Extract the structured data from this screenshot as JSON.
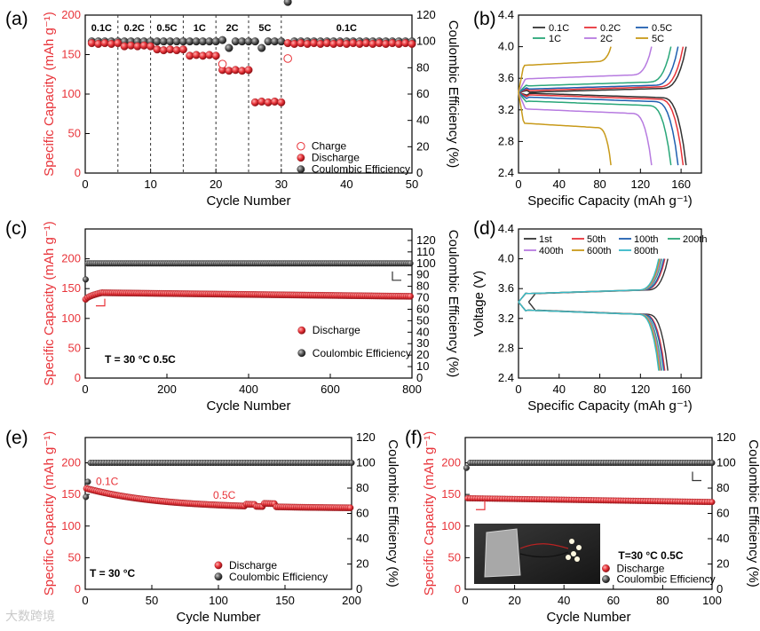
{
  "colors": {
    "red": "#e8343a",
    "black": "#333333",
    "grey": "#555555",
    "axis": "#000000"
  },
  "watermark": "大数跨境",
  "chart_data": [
    {
      "id": "a",
      "type": "scatter",
      "panel_label": "(a)",
      "xlabel": "Cycle Number",
      "ylabel": "Specific Capacity (mAh g⁻¹)",
      "y2label": "Coulombic Efficiency (%)",
      "xlim": [
        0,
        50
      ],
      "ylim": [
        0,
        200
      ],
      "y2lim": [
        0,
        120
      ],
      "xticks": [
        0,
        10,
        20,
        30,
        40,
        50
      ],
      "yticks": [
        0,
        50,
        100,
        150,
        200
      ],
      "y2ticks": [
        0,
        20,
        40,
        60,
        80,
        100,
        120
      ],
      "segments": [
        {
          "label": "0.1C",
          "x_range": [
            0,
            5
          ]
        },
        {
          "label": "0.2C",
          "x_range": [
            5,
            10
          ]
        },
        {
          "label": "0.5C",
          "x_range": [
            10,
            15
          ]
        },
        {
          "label": "1C",
          "x_range": [
            15,
            20
          ]
        },
        {
          "label": "2C",
          "x_range": [
            20,
            25
          ]
        },
        {
          "label": "5C",
          "x_range": [
            25,
            30
          ]
        },
        {
          "label": "0.1C",
          "x_range": [
            30,
            50
          ]
        }
      ],
      "legend": [
        "Charge",
        "Discharge",
        "Coulombic Efficiency"
      ],
      "series": [
        {
          "name": "Charge",
          "marker": "open-circle",
          "x": [
            21,
            31
          ],
          "values": [
            138,
            145
          ]
        },
        {
          "name": "Discharge",
          "marker": "red-ball",
          "segment_values": [
            {
              "x": [
                1,
                5
              ],
              "y": 164
            },
            {
              "x": [
                6,
                10
              ],
              "y": 161
            },
            {
              "x": [
                11,
                15
              ],
              "y": 156
            },
            {
              "x": [
                16,
                20
              ],
              "y": 149
            },
            {
              "x": [
                21,
                25
              ],
              "y": 130
            },
            {
              "x": [
                26,
                30
              ],
              "y": 90
            },
            {
              "x": [
                31,
                50
              ],
              "y": 164
            }
          ]
        },
        {
          "name": "Coulombic Efficiency",
          "marker": "grey-ball",
          "axis": "y2",
          "values": [
            100,
            100,
            100,
            100,
            100,
            100,
            100,
            100,
            100,
            100,
            100,
            100,
            100,
            100,
            100,
            100,
            100,
            100,
            100,
            100,
            101,
            95,
            100,
            100,
            100,
            100,
            95,
            100,
            100,
            100,
            130,
            100,
            100,
            100,
            100,
            100,
            100,
            100,
            100,
            100,
            100,
            100,
            100,
            100,
            100,
            100,
            100,
            100,
            100,
            100
          ]
        }
      ]
    },
    {
      "id": "b",
      "type": "line",
      "panel_label": "(b)",
      "xlabel": "Specific Capacity (mAh g⁻¹)",
      "ylabel": "",
      "xlim": [
        0,
        180
      ],
      "ylim": [
        2.4,
        4.4
      ],
      "xticks": [
        0,
        40,
        80,
        120,
        160
      ],
      "yticks": [
        2.4,
        2.8,
        3.2,
        3.6,
        4.0,
        4.4
      ],
      "legend": [
        "0.1C",
        "0.2C",
        "0.5C",
        "1C",
        "2C",
        "5C"
      ],
      "series": [
        {
          "name": "0.1C",
          "color": "#333333",
          "cap": 165,
          "plat_c": 3.45,
          "plat_d": 3.38
        },
        {
          "name": "0.2C",
          "color": "#e8343a",
          "cap": 162,
          "plat_c": 3.47,
          "plat_d": 3.36
        },
        {
          "name": "0.5C",
          "color": "#1f5fb0",
          "cap": 157,
          "plat_c": 3.49,
          "plat_d": 3.33
        },
        {
          "name": "1C",
          "color": "#2aa779",
          "cap": 150,
          "plat_c": 3.53,
          "plat_d": 3.28
        },
        {
          "name": "2C",
          "color": "#b77be0",
          "cap": 131,
          "plat_c": 3.62,
          "plat_d": 3.18
        },
        {
          "name": "5C",
          "color": "#c89a1a",
          "cap": 91,
          "plat_c": 3.79,
          "plat_d": 3.0
        }
      ]
    },
    {
      "id": "c",
      "type": "scatter",
      "panel_label": "(c)",
      "xlabel": "Cycle Number",
      "ylabel": "Specific Capacity (mAh g⁻¹)",
      "y2label": "Coulombic Efficiency (%)",
      "xlim": [
        0,
        800
      ],
      "ylim": [
        0,
        250
      ],
      "y2lim": [
        0,
        130
      ],
      "xticks": [
        0,
        200,
        400,
        600,
        800
      ],
      "yticks": [
        0,
        50,
        100,
        150,
        200
      ],
      "y2ticks": [
        0,
        10,
        20,
        30,
        40,
        50,
        60,
        70,
        80,
        90,
        100,
        110,
        120
      ],
      "annotation": "T = 30 °C   0.5C",
      "legend": [
        "Discharge",
        "Coulombic Efficiency"
      ],
      "series": [
        {
          "name": "Discharge",
          "marker": "red-ball",
          "start": 130,
          "peak": 143,
          "end": 137
        },
        {
          "name": "Coulombic Efficiency",
          "marker": "grey-ball",
          "axis": "y2",
          "value": 100,
          "first": 86
        }
      ]
    },
    {
      "id": "d",
      "type": "line",
      "panel_label": "(d)",
      "xlabel": "Specific Capacity (mAh g⁻¹)",
      "ylabel": "Voltage (V)",
      "xlim": [
        0,
        180
      ],
      "ylim": [
        2.4,
        4.4
      ],
      "xticks": [
        0,
        40,
        80,
        120,
        160
      ],
      "yticks": [
        2.4,
        2.8,
        3.2,
        3.6,
        4.0,
        4.4
      ],
      "legend": [
        "1st",
        "50th",
        "100th",
        "200th",
        "400th",
        "600th",
        "800th"
      ],
      "series": [
        {
          "name": "1st",
          "color": "#333333",
          "cap": 147,
          "start": 10
        },
        {
          "name": "50th",
          "color": "#e8343a",
          "cap": 144,
          "start": 0
        },
        {
          "name": "100th",
          "color": "#1f5fb0",
          "cap": 143,
          "start": 0
        },
        {
          "name": "200th",
          "color": "#2aa779",
          "cap": 141,
          "start": 0
        },
        {
          "name": "400th",
          "color": "#b77be0",
          "cap": 140,
          "start": 0
        },
        {
          "name": "600th",
          "color": "#c89a1a",
          "cap": 139,
          "start": 0
        },
        {
          "name": "800th",
          "color": "#35b8c8",
          "cap": 138,
          "start": 0
        }
      ]
    },
    {
      "id": "e",
      "type": "scatter",
      "panel_label": "(e)",
      "xlabel": "Cycle Number",
      "ylabel": "Specific Capacity (mAh g⁻¹)",
      "y2label": "Coulombic Efficiency (%)",
      "xlim": [
        0,
        200
      ],
      "ylim": [
        0,
        240
      ],
      "y2lim": [
        0,
        120
      ],
      "xticks": [
        0,
        50,
        100,
        150,
        200
      ],
      "yticks": [
        0,
        50,
        100,
        150,
        200
      ],
      "y2ticks": [
        0,
        20,
        40,
        60,
        80,
        100,
        120
      ],
      "annotation": "T = 30 °C",
      "rate_labels": [
        "0.1C",
        "0.5C"
      ],
      "legend": [
        "Discharge",
        "Coulombic Efficiency"
      ],
      "series": [
        {
          "name": "Discharge",
          "marker": "red-ball",
          "start": 160,
          "end": 128
        },
        {
          "name": "Coulombic Efficiency",
          "marker": "grey-ball",
          "axis": "y2",
          "value": 100,
          "first": [
            73,
            85
          ]
        }
      ]
    },
    {
      "id": "f",
      "type": "scatter",
      "panel_label": "(f)",
      "xlabel": "Cycle Number",
      "ylabel": "Specific Capacity (mAh g⁻¹)",
      "y2label": "Coulombic Efficiency (%)",
      "xlim": [
        0,
        100
      ],
      "ylim": [
        0,
        240
      ],
      "y2lim": [
        0,
        120
      ],
      "xticks": [
        0,
        20,
        40,
        60,
        80,
        100
      ],
      "yticks": [
        0,
        50,
        100,
        150,
        200
      ],
      "y2ticks": [
        0,
        20,
        40,
        60,
        80,
        100,
        120
      ],
      "annotation": "T=30 °C   0.5C",
      "legend": [
        "Discharge",
        "Coulombic Efficiency"
      ],
      "series": [
        {
          "name": "Discharge",
          "marker": "red-ball",
          "start": 144,
          "end": 138
        },
        {
          "name": "Coulombic Efficiency",
          "marker": "grey-ball",
          "axis": "y2",
          "value": 100,
          "first": 96
        }
      ]
    }
  ]
}
